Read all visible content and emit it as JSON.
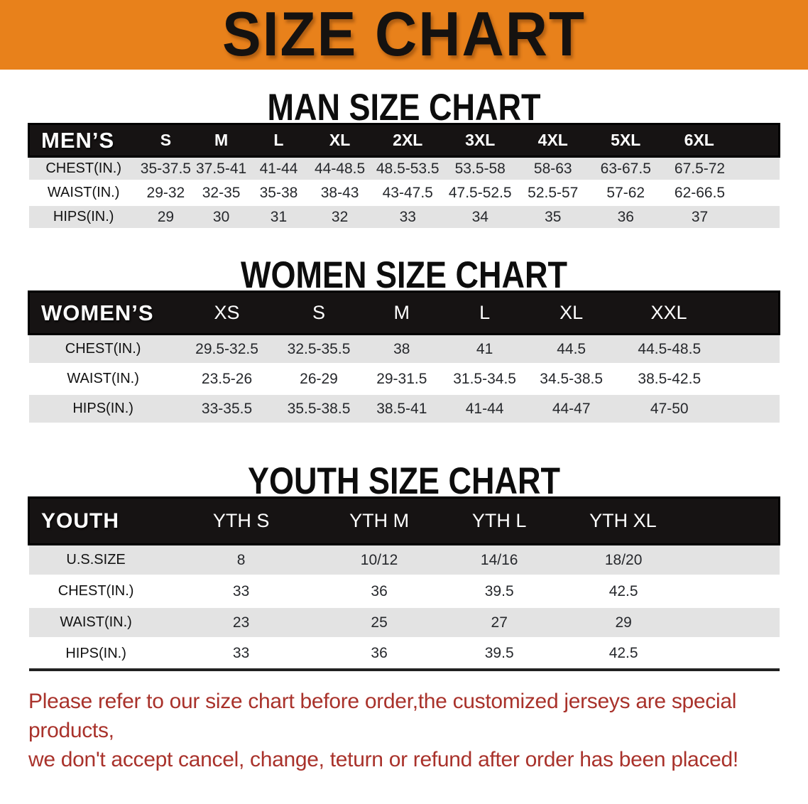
{
  "banner": {
    "title": "SIZE CHART"
  },
  "sections": [
    {
      "heading": "MAN SIZE CHART",
      "table": {
        "header_label": "MEN’S",
        "columns": [
          "S",
          "M",
          "L",
          "XL",
          "2XL",
          "3XL",
          "4XL",
          "5XL",
          "6XL"
        ],
        "rows": [
          {
            "label": "CHEST(IN.)",
            "values": [
              "35-37.5",
              "37.5-41",
              "41-44",
              "44-48.5",
              "48.5-53.5",
              "53.5-58",
              "58-63",
              "63-67.5",
              "67.5-72"
            ]
          },
          {
            "label": "WAIST(IN.)",
            "values": [
              "29-32",
              "32-35",
              "35-38",
              "38-43",
              "43-47.5",
              "47.5-52.5",
              "52.5-57",
              "57-62",
              "62-66.5"
            ]
          },
          {
            "label": "HIPS(IN.)",
            "values": [
              "29",
              "30",
              "31",
              "32",
              "33",
              "34",
              "35",
              "36",
              "37"
            ]
          }
        ]
      }
    },
    {
      "heading": "WOMEN SIZE CHART",
      "table": {
        "header_label": "WOMEN’S",
        "columns": [
          "XS",
          "S",
          "M",
          "L",
          "XL",
          "XXL"
        ],
        "rows": [
          {
            "label": "CHEST(IN.)",
            "values": [
              "29.5-32.5",
              "32.5-35.5",
              "38",
              "41",
              "44.5",
              "44.5-48.5"
            ]
          },
          {
            "label": "WAIST(IN.)",
            "values": [
              "23.5-26",
              "26-29",
              "29-31.5",
              "31.5-34.5",
              "34.5-38.5",
              "38.5-42.5"
            ]
          },
          {
            "label": "HIPS(IN.)",
            "values": [
              "33-35.5",
              "35.5-38.5",
              "38.5-41",
              "41-44",
              "44-47",
              "47-50"
            ]
          }
        ]
      }
    },
    {
      "heading": "YOUTH SIZE CHART",
      "table": {
        "header_label": "YOUTH",
        "columns": [
          "YTH S",
          "YTH M",
          "YTH L",
          "YTH XL"
        ],
        "rows": [
          {
            "label": "U.S.SIZE",
            "values": [
              "8",
              "10/12",
              "14/16",
              "18/20"
            ]
          },
          {
            "label": "CHEST(IN.)",
            "values": [
              "33",
              "36",
              "39.5",
              "42.5"
            ]
          },
          {
            "label": "WAIST(IN.)",
            "values": [
              "23",
              "25",
              "27",
              "29"
            ]
          },
          {
            "label": "HIPS(IN.)",
            "values": [
              "33",
              "36",
              "39.5",
              "42.5"
            ]
          }
        ]
      }
    }
  ],
  "notice": {
    "line1": "Please refer to our size chart before order,the customized jerseys are special products,",
    "line2": "we don't accept cancel, change, teturn or refund after order has been placed!"
  },
  "colors": {
    "banner_orange": "#E8811B",
    "header_bar_black": "#161313",
    "row_gray": "#E3E3E3",
    "notice_red": "#A9322B"
  }
}
